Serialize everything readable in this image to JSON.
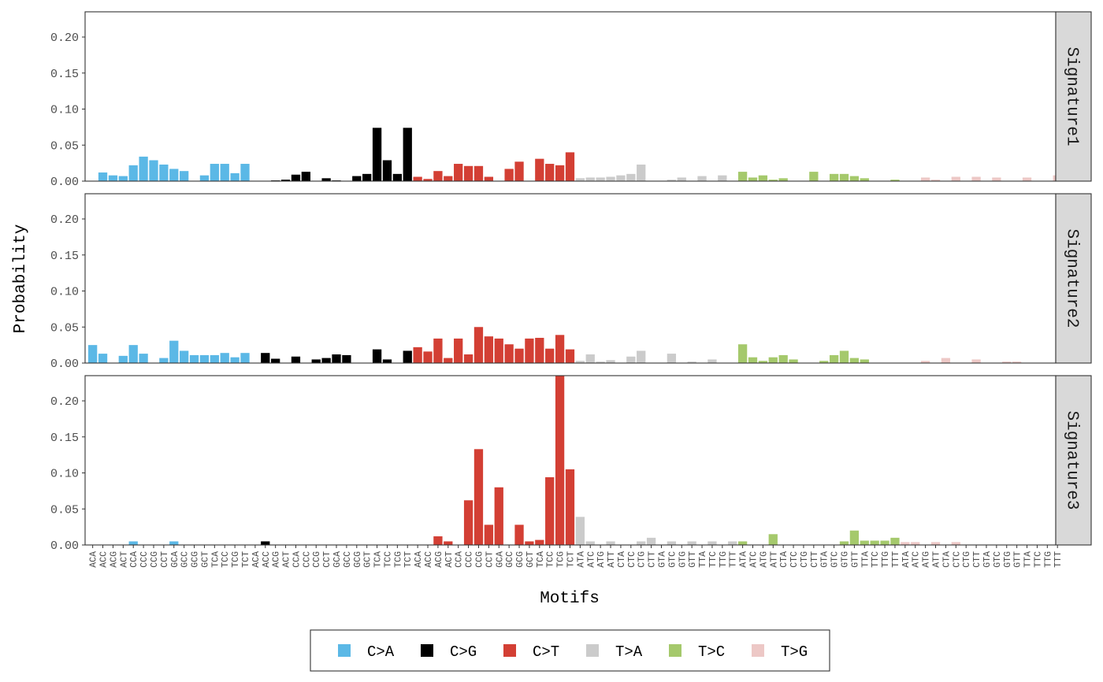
{
  "chart_data": {
    "type": "bar",
    "xlabel": "Motifs",
    "ylabel": "Probability",
    "ylim": [
      0,
      0.235
    ],
    "yticks": [
      "0.00",
      "0.05",
      "0.10",
      "0.15",
      "0.20"
    ],
    "grid": false,
    "legend_position": "bottom",
    "group_colors": [
      "#5bb8e6",
      "#000000",
      "#d33f34",
      "#cbcbcb",
      "#a5c96c",
      "#edc8c6"
    ],
    "legend": [
      {
        "label": "C>A",
        "color": "#5bb8e6"
      },
      {
        "label": "C>G",
        "color": "#000000"
      },
      {
        "label": "C>T",
        "color": "#d33f34"
      },
      {
        "label": "T>A",
        "color": "#cbcbcb"
      },
      {
        "label": "T>C",
        "color": "#a5c96c"
      },
      {
        "label": "T>G",
        "color": "#edc8c6"
      }
    ],
    "categories": [
      "ACA",
      "ACC",
      "ACG",
      "ACT",
      "CCA",
      "CCC",
      "CCG",
      "CCT",
      "GCA",
      "GCC",
      "GCG",
      "GCT",
      "TCA",
      "TCC",
      "TCG",
      "TCT",
      "ACA",
      "ACC",
      "ACG",
      "ACT",
      "CCA",
      "CCC",
      "CCG",
      "CCT",
      "GCA",
      "GCC",
      "GCG",
      "GCT",
      "TCA",
      "TCC",
      "TCG",
      "TCT",
      "ACA",
      "ACC",
      "ACG",
      "ACT",
      "CCA",
      "CCC",
      "CCG",
      "CCT",
      "GCA",
      "GCC",
      "GCG",
      "GCT",
      "TCA",
      "TCC",
      "TCG",
      "TCT",
      "ATA",
      "ATC",
      "ATG",
      "ATT",
      "CTA",
      "CTC",
      "CTG",
      "CTT",
      "GTA",
      "GTC",
      "GTG",
      "GTT",
      "TTA",
      "TTC",
      "TTG",
      "TTT",
      "ATA",
      "ATC",
      "ATG",
      "ATT",
      "CTA",
      "CTC",
      "CTG",
      "CTT",
      "GTA",
      "GTC",
      "GTG",
      "GTT",
      "TTA",
      "TTC",
      "TTG",
      "TTT",
      "ATA",
      "ATC",
      "ATG",
      "ATT",
      "CTA",
      "CTC",
      "CTG",
      "CTT",
      "GTA",
      "GTC",
      "GTG",
      "GTT",
      "TTA",
      "TTC",
      "TTG",
      "TTT"
    ],
    "series": [
      {
        "name": "Signature1",
        "values": [
          0,
          0.012,
          0.008,
          0.007,
          0.022,
          0.034,
          0.029,
          0.023,
          0.017,
          0.014,
          0,
          0.008,
          0.024,
          0.024,
          0.011,
          0.024,
          0,
          0,
          0.001,
          0.002,
          0.009,
          0.013,
          0,
          0.004,
          0.001,
          0,
          0.007,
          0.01,
          0.074,
          0.029,
          0.01,
          0.074,
          0.006,
          0.003,
          0.014,
          0.007,
          0.024,
          0.021,
          0.021,
          0.006,
          0,
          0.017,
          0.027,
          0,
          0.031,
          0.024,
          0.022,
          0.04,
          0.004,
          0.005,
          0.005,
          0.006,
          0.008,
          0.01,
          0.023,
          0,
          0,
          0.002,
          0.005,
          0,
          0.007,
          0,
          0.008,
          0,
          0.013,
          0.005,
          0.008,
          0.002,
          0.004,
          0,
          0,
          0.013,
          0,
          0.01,
          0.01,
          0.007,
          0.004,
          0,
          0,
          0.002,
          0,
          0,
          0.005,
          0.002,
          0,
          0.006,
          0,
          0.006,
          0,
          0.005,
          0,
          0,
          0.005,
          0,
          0,
          0.008
        ]
      },
      {
        "name": "Signature2",
        "values": [
          0.025,
          0.013,
          0,
          0.01,
          0.025,
          0.013,
          0,
          0.007,
          0.031,
          0.017,
          0.011,
          0.011,
          0.011,
          0.014,
          0.008,
          0.014,
          0,
          0.014,
          0.006,
          0,
          0.009,
          0,
          0.005,
          0.007,
          0.012,
          0.011,
          0,
          0,
          0.019,
          0.005,
          0,
          0.017,
          0.022,
          0.016,
          0.034,
          0.007,
          0.034,
          0.012,
          0.05,
          0.037,
          0.034,
          0.026,
          0.02,
          0.034,
          0.035,
          0.02,
          0.039,
          0.019,
          0.003,
          0.012,
          0.002,
          0.004,
          0,
          0.009,
          0.017,
          0,
          0,
          0.013,
          0,
          0.002,
          0,
          0.005,
          0,
          0,
          0.026,
          0.008,
          0.003,
          0.008,
          0.011,
          0.005,
          0,
          0,
          0.003,
          0.011,
          0.017,
          0.007,
          0.005,
          0,
          0,
          0,
          0,
          0,
          0.003,
          0,
          0.007,
          0,
          0,
          0.005,
          0,
          0,
          0.002,
          0.002,
          0,
          0,
          0,
          0
        ]
      },
      {
        "name": "Signature3",
        "values": [
          0,
          0,
          0,
          0,
          0.005,
          0,
          0,
          0,
          0.005,
          0,
          0,
          0,
          0,
          0,
          0,
          0,
          0,
          0.005,
          0,
          0,
          0,
          0,
          0,
          0,
          0,
          0,
          0,
          0,
          0,
          0,
          0,
          0,
          0,
          0,
          0.012,
          0.005,
          0,
          0.062,
          0.133,
          0.028,
          0.08,
          0,
          0.028,
          0.005,
          0.007,
          0.094,
          0.235,
          0.105,
          0.039,
          0.005,
          0,
          0.005,
          0,
          0,
          0.005,
          0.01,
          0,
          0.005,
          0,
          0.005,
          0,
          0.005,
          0,
          0.005,
          0.005,
          0,
          0,
          0.015,
          0,
          0,
          0,
          0,
          0,
          0,
          0.005,
          0.02,
          0.006,
          0.006,
          0.006,
          0.01,
          0.004,
          0.004,
          0,
          0.004,
          0,
          0.004,
          0,
          0,
          0,
          0,
          0,
          0,
          0,
          0,
          0,
          0
        ]
      }
    ]
  }
}
